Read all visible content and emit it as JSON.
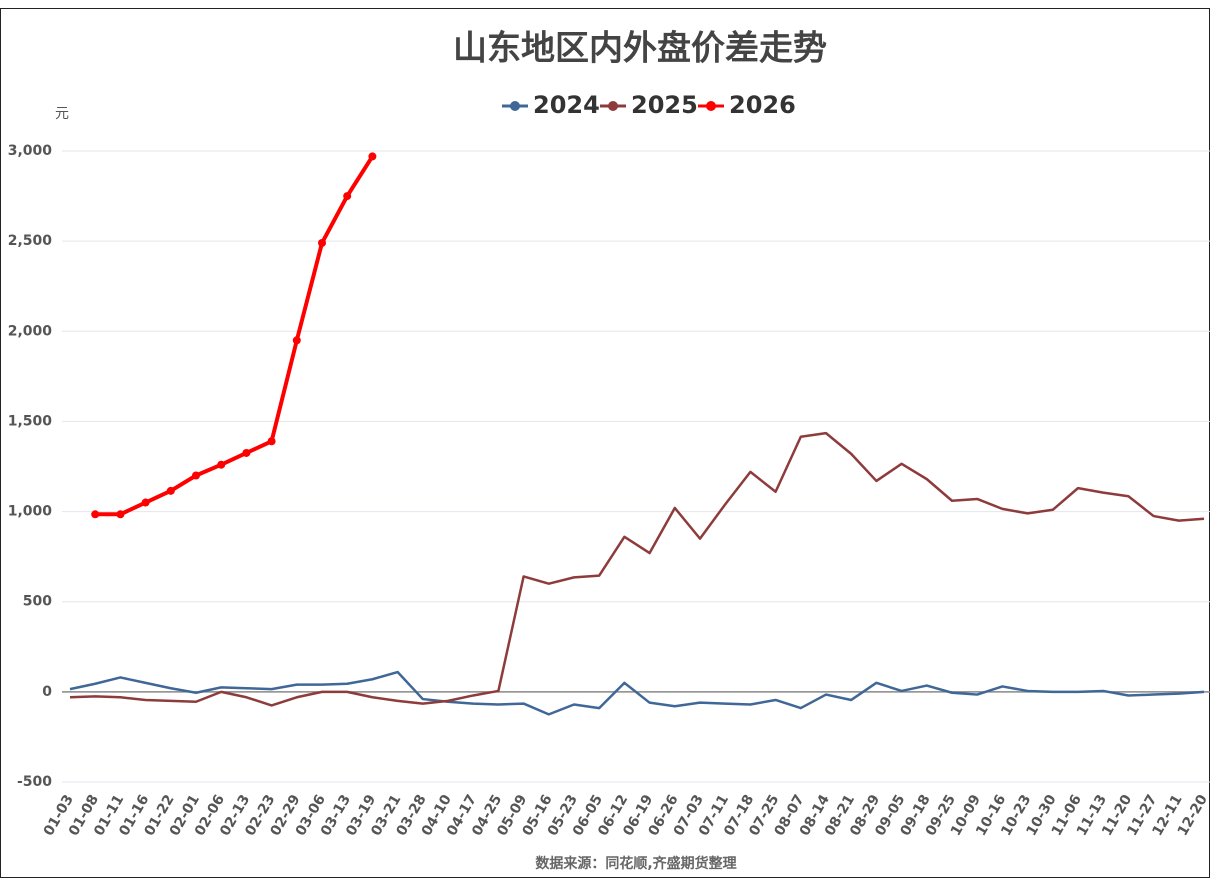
{
  "chart_data": {
    "type": "line",
    "title": "山东地区内外盘价差走势",
    "y_unit": "元",
    "source": "数据来源：同花顺,齐盛期货整理",
    "categories": [
      "01-03",
      "01-08",
      "01-11",
      "01-16",
      "01-22",
      "02-01",
      "02-06",
      "02-13",
      "02-23",
      "02-29",
      "03-06",
      "03-13",
      "03-19",
      "03-21",
      "03-28",
      "04-10",
      "04-17",
      "04-25",
      "05-09",
      "05-16",
      "05-23",
      "06-05",
      "06-12",
      "06-19",
      "06-26",
      "07-03",
      "07-11",
      "07-18",
      "07-25",
      "08-07",
      "08-14",
      "08-21",
      "08-29",
      "09-05",
      "09-18",
      "09-25",
      "10-09",
      "10-16",
      "10-23",
      "10-30",
      "11-06",
      "11-13",
      "11-20",
      "11-27",
      "12-11",
      "12-20"
    ],
    "series": [
      {
        "name": "2024",
        "color": "#3f6797",
        "marker": false,
        "values": [
          15,
          45,
          80,
          50,
          20,
          -5,
          25,
          20,
          15,
          40,
          40,
          45,
          70,
          110,
          -40,
          -55,
          -65,
          -70,
          -65,
          -125,
          -70,
          -90,
          50,
          -60,
          -80,
          -60,
          -65,
          -70,
          -45,
          -90,
          -15,
          -45,
          50,
          5,
          35,
          -5,
          -15,
          30,
          5,
          0,
          0,
          5,
          -20,
          -15,
          -10,
          0
        ]
      },
      {
        "name": "2025",
        "color": "#8e3b3b",
        "marker": false,
        "values": [
          -30,
          -25,
          -30,
          -45,
          -50,
          -55,
          0,
          -30,
          -75,
          -30,
          0,
          0,
          -30,
          -50,
          -65,
          -50,
          -20,
          5,
          640,
          600,
          635,
          645,
          860,
          770,
          1020,
          850,
          1040,
          1220,
          1110,
          1415,
          1435,
          1320,
          1170,
          1265,
          1180,
          1060,
          1070,
          1015,
          990,
          1010,
          1130,
          1105,
          1085,
          975,
          950,
          960
        ]
      },
      {
        "name": "2026",
        "color": "#ff0000",
        "marker": true,
        "values": [
          null,
          985,
          985,
          1050,
          1115,
          1200,
          1260,
          1325,
          1390,
          1950,
          2490,
          2750,
          2970,
          null,
          null,
          null,
          null,
          null,
          null,
          null,
          null,
          null,
          null,
          null,
          null,
          null,
          null,
          null,
          null,
          null,
          null,
          null,
          null,
          null,
          null,
          null,
          null,
          null,
          null,
          null,
          null,
          null,
          null,
          null,
          null,
          null
        ]
      }
    ],
    "ylim": [
      -500,
      3000
    ],
    "yticks": [
      -500,
      0,
      500,
      {
        "value": 1000,
        "label": "1,000"
      },
      {
        "value": 1500,
        "label": "1,500"
      },
      {
        "value": 2000,
        "label": "2,000"
      },
      {
        "value": 2500,
        "label": "2,500"
      },
      {
        "value": 3000,
        "label": "3,000"
      }
    ],
    "grid": true
  }
}
